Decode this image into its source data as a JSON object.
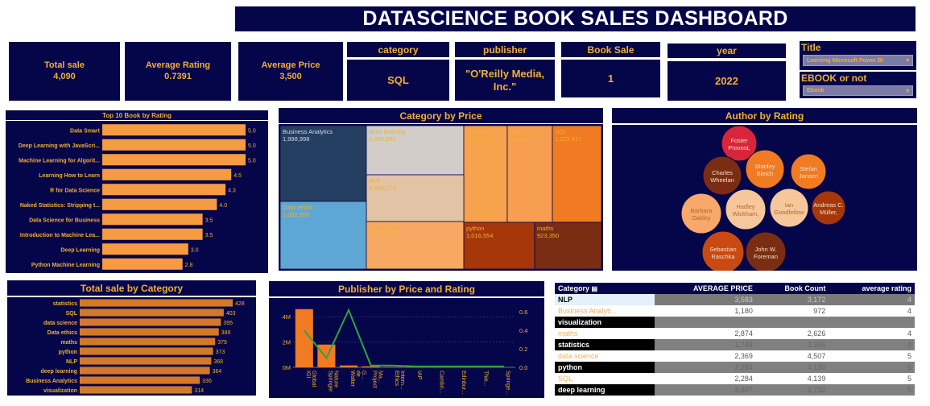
{
  "header": {
    "title": "DATASCIENCE BOOK SALES DASHBOARD"
  },
  "kpis": [
    {
      "label": "Total sale",
      "value": "4,090"
    },
    {
      "label": "Average Rating",
      "value": "0.7391"
    },
    {
      "label": "Average Price",
      "value": "3,500"
    }
  ],
  "cards": [
    {
      "label": "category",
      "value": "SQL"
    },
    {
      "label": "publisher",
      "value": "\"O'Reilly Media, Inc.\""
    },
    {
      "label": "Book Sale",
      "value": "1"
    },
    {
      "label": "year",
      "value": "2022"
    }
  ],
  "slicers": [
    {
      "label": "Title",
      "value": "Learning Microsoft Power BI"
    },
    {
      "label": "EBOOK or not",
      "value": "Ebook"
    }
  ],
  "chart_data": [
    {
      "type": "bar",
      "title": "Top 10 Book by Rating",
      "categories": [
        "Data Smart",
        "Deep Learning with JavaScri...",
        "Machine Learning for Algorit...",
        "Learning How to Learn",
        "R for Data Science",
        "Naked Statistics: Stripping t...",
        "Data Science for Business",
        "Introduction to Machine Lea...",
        "Deep Learning",
        "Python Machine Learning"
      ],
      "values": [
        5.0,
        5.0,
        5.0,
        4.5,
        4.3,
        4.0,
        3.5,
        3.5,
        3.0,
        2.8
      ],
      "labels": [
        "5.0",
        "5.0",
        "5.0",
        "4.5",
        "4.3",
        "4.0",
        "3.5",
        "3.5",
        "3.0",
        "2.8"
      ],
      "color": "#f59b42"
    },
    {
      "type": "treemap",
      "title": "Category by Price",
      "categories": [
        "Business Analytics",
        "deep learning",
        "statistics",
        "data science",
        "SQL",
        "NLP",
        "Data ethics",
        "visualization",
        "python",
        "maths"
      ],
      "values": [
        1998998,
        1458892,
        1243212,
        1242675,
        1223417,
        1429173,
        1092550,
        1201328,
        1016554,
        923350
      ],
      "labels": [
        "1,998,998",
        "1,458,892",
        "1,243,212",
        "1,242,675",
        "1,223,417",
        "1,429,173",
        "1,092,550",
        "1,201,328",
        "1,016,554",
        "923,350"
      ]
    },
    {
      "type": "bubble",
      "title": "Author by Rating",
      "names": [
        "Foster Provost,",
        "Charles Wheelan",
        "Stanley Bleich",
        "Stefan Jansen",
        "Andreas C. Müller,",
        "Barbara Oakley",
        "Hadley Wickham,",
        "Ian Goodfellow",
        "Sebastian Raschka",
        "John W. Foreman"
      ]
    },
    {
      "type": "bar",
      "title": "Total sale by Category",
      "categories": [
        "statistics",
        "SQL",
        "data science",
        "Data ethics",
        "maths",
        "python",
        "NLP",
        "deep learning",
        "Business Analytics",
        "visualization"
      ],
      "values": [
        428,
        403,
        395,
        389,
        379,
        373,
        368,
        364,
        336,
        314
      ],
      "labels": [
        "428",
        "403",
        "395",
        "389",
        "379",
        "373",
        "368",
        "364",
        "336",
        "314"
      ],
      "color": "#d27a2a"
    },
    {
      "type": "bar+line",
      "title": "Publisher by Price and Rating",
      "categories": [
        "IGI Global",
        "Springer Nature",
        "Walter de G...",
        "Project Ma...",
        "Ethics Intern...",
        "IAP",
        "Cambri...",
        "Edinbur...",
        "Thie...",
        "Springe..."
      ],
      "price": [
        4600000,
        1800000,
        150000,
        80000,
        30000,
        20000,
        15000,
        10000,
        10000,
        5000
      ],
      "rating": [
        0.4,
        0.1,
        0.62,
        0.02,
        0.02,
        0.01,
        0.01,
        0.01,
        0.01,
        0.01
      ],
      "y_left_ticks": [
        "0M",
        "2M",
        "4M"
      ],
      "y_right_ticks": [
        "0.0",
        "0.2",
        "0.4",
        "0.6"
      ]
    },
    {
      "type": "table",
      "columns": [
        "Category",
        "AVERAGE PRICE",
        "Book Count",
        "average rating"
      ],
      "rows": [
        {
          "cells": [
            "NLP",
            "3,583",
            "3,172",
            "4"
          ],
          "style": "sel"
        },
        {
          "cells": [
            "Business Analyti...",
            "1,180",
            "972",
            "4"
          ],
          "style": "light"
        },
        {
          "cells": [
            "visualization",
            "",
            "",
            ""
          ],
          "style": "dark"
        },
        {
          "cells": [
            "maths",
            "2,874",
            "2,626",
            "4"
          ],
          "style": "light"
        },
        {
          "cells": [
            "statistics",
            "1,748",
            "3,346",
            "4"
          ],
          "style": "dark"
        },
        {
          "cells": [
            "data science",
            "2,369",
            "4,507",
            "5"
          ],
          "style": "light"
        },
        {
          "cells": [
            "python",
            "2,284",
            "4,130",
            "5"
          ],
          "style": "dark"
        },
        {
          "cells": [
            "SQL",
            "2,284",
            "4,139",
            "5"
          ],
          "style": "light"
        },
        {
          "cells": [
            "deep learning",
            "3,807",
            "2,732",
            "5"
          ],
          "style": "dark"
        }
      ]
    }
  ]
}
